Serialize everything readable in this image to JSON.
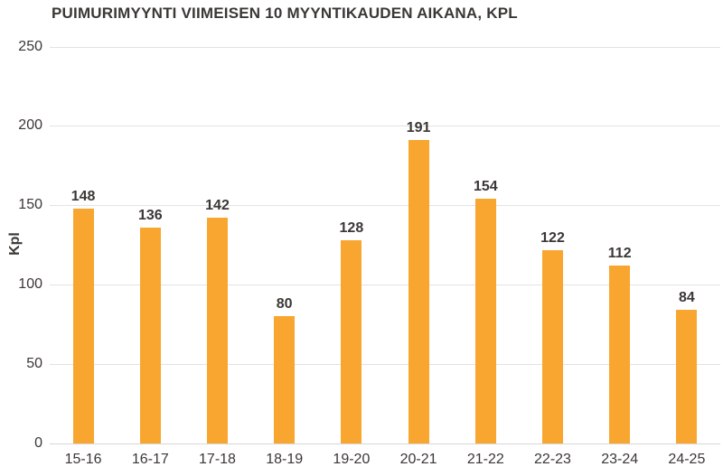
{
  "colors": {
    "background": "#FFFFFF",
    "bar": "#F8A630",
    "text": "#3B3735",
    "grid": "#E2E2E2",
    "axis_line": "#D6D6D6"
  },
  "chart_data": {
    "type": "bar",
    "title": "PUIMURIMYYNTI VIIMEISEN 10 MYYNTIKAUDEN AIKANA, KPL",
    "categories": [
      "15-16",
      "16-17",
      "17-18",
      "18-19",
      "19-20",
      "20-21",
      "21-22",
      "22-23",
      "23-24",
      "24-25"
    ],
    "values": [
      148,
      136,
      142,
      80,
      128,
      191,
      154,
      122,
      112,
      84
    ],
    "xlabel": "",
    "ylabel": "Kpl",
    "ylim": [
      0,
      250
    ],
    "yticks": [
      0,
      50,
      100,
      150,
      200,
      250
    ],
    "grid": "horizontal",
    "legend": "none",
    "data_labels": true
  }
}
